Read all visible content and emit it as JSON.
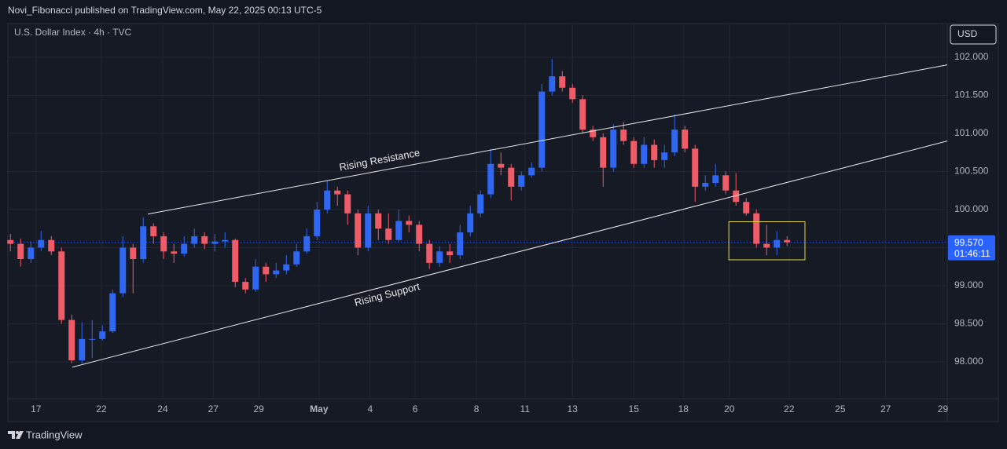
{
  "header": {
    "published": "Novi_Fibonacci published on TradingView.com, May 22, 2025 00:13 UTC-5"
  },
  "footer": {
    "brand": "TradingView"
  },
  "chart_data": {
    "type": "candlestick",
    "title": "U.S. Dollar Index · 4h · TVC",
    "currency": "USD",
    "up_color": "#2f66f2",
    "down_color": "#f05b68",
    "grid": true,
    "xlim": [
      0,
      183.85
    ],
    "ylim": [
      97.515,
      102.443
    ],
    "xticks": [
      {
        "value": 5.5,
        "label": "17"
      },
      {
        "value": 18.3,
        "label": "22"
      },
      {
        "value": 30.3,
        "label": "24"
      },
      {
        "value": 40.2,
        "label": "27"
      },
      {
        "value": 49.1,
        "label": "29"
      },
      {
        "value": 60.9,
        "label": "May"
      },
      {
        "value": 70.9,
        "label": "4"
      },
      {
        "value": 79.7,
        "label": "6"
      },
      {
        "value": 91.7,
        "label": "8"
      },
      {
        "value": 101.2,
        "label": "11"
      },
      {
        "value": 110.5,
        "label": "13"
      },
      {
        "value": 122.5,
        "label": "15"
      },
      {
        "value": 132.2,
        "label": "18"
      },
      {
        "value": 141.2,
        "label": "20"
      },
      {
        "value": 152.9,
        "label": "22"
      },
      {
        "value": 162.9,
        "label": "25"
      },
      {
        "value": 171.8,
        "label": "27"
      },
      {
        "value": 183,
        "label": "29"
      }
    ],
    "yticks": [
      {
        "value": 98,
        "label": "98.000"
      },
      {
        "value": 98.5,
        "label": "98.500"
      },
      {
        "value": 99,
        "label": "99.000"
      },
      {
        "value": 99.5,
        "label": "99.500"
      },
      {
        "value": 100,
        "label": "100.000"
      },
      {
        "value": 100.5,
        "label": "100.500"
      },
      {
        "value": 101,
        "label": "101.000"
      },
      {
        "value": 101.5,
        "label": "101.500"
      },
      {
        "value": 102,
        "label": "102.000"
      }
    ],
    "x": [
      0.5,
      2.5,
      4.5,
      6.5,
      8.5,
      10.5,
      12.5,
      14.5,
      16.5,
      18.5,
      20.5,
      22.5,
      24.5,
      26.5,
      28.5,
      30.5,
      32.5,
      34.5,
      36.5,
      38.5,
      40.5,
      42.5,
      44.5,
      46.5,
      48.5,
      50.5,
      52.5,
      54.5,
      56.5,
      58.5,
      60.5,
      62.5,
      64.5,
      66.5,
      68.5,
      70.5,
      72.5,
      74.5,
      76.5,
      78.5,
      80.5,
      82.5,
      84.5,
      86.5,
      88.5,
      90.5,
      92.5,
      94.5,
      96.5,
      98.5,
      100.5,
      102.5,
      104.5,
      106.5,
      108.5,
      110.5,
      112.5,
      114.5,
      116.5,
      118.5,
      120.5,
      122.5,
      124.5,
      126.5,
      128.5,
      130.5,
      132.5,
      134.5,
      136.5,
      138.5,
      140.5,
      142.5,
      144.5,
      146.5,
      148.5,
      150.5,
      152.5
    ],
    "open": [
      99.6,
      99.55,
      99.35,
      99.5,
      99.6,
      99.45,
      98.55,
      98.02,
      98.3,
      98.3,
      98.4,
      98.9,
      99.5,
      99.35,
      99.78,
      99.65,
      99.45,
      99.42,
      99.55,
      99.65,
      99.55,
      99.58,
      99.6,
      99.05,
      98.95,
      99.25,
      99.15,
      99.2,
      99.28,
      99.45,
      99.65,
      100.0,
      100.25,
      100.2,
      99.95,
      99.5,
      99.95,
      99.75,
      99.6,
      99.85,
      99.8,
      99.55,
      99.3,
      99.45,
      99.4,
      99.7,
      99.95,
      100.2,
      100.6,
      100.55,
      100.3,
      100.45,
      100.55,
      101.55,
      101.75,
      101.6,
      101.45,
      101.05,
      100.95,
      100.55,
      101.05,
      100.9,
      100.6,
      100.85,
      100.65,
      100.75,
      101.05,
      100.8,
      100.3,
      100.35,
      100.45,
      100.25,
      100.1,
      99.95,
      99.55,
      99.5,
      99.6
    ],
    "high": [
      99.68,
      99.62,
      99.58,
      99.72,
      99.65,
      99.5,
      98.62,
      98.52,
      98.55,
      98.48,
      98.95,
      99.65,
      99.55,
      99.9,
      99.82,
      99.7,
      99.55,
      99.65,
      99.75,
      99.7,
      99.68,
      99.7,
      99.62,
      99.1,
      99.35,
      99.3,
      99.3,
      99.4,
      99.55,
      99.75,
      100.1,
      100.38,
      100.3,
      100.25,
      100.0,
      100.05,
      100.0,
      99.95,
      100.0,
      99.92,
      99.85,
      99.6,
      99.52,
      99.55,
      99.8,
      100.05,
      100.25,
      100.8,
      100.75,
      100.6,
      100.5,
      100.62,
      101.65,
      101.98,
      101.82,
      101.65,
      101.5,
      101.1,
      101.0,
      101.12,
      101.15,
      100.95,
      100.95,
      100.92,
      100.85,
      101.25,
      101.1,
      100.85,
      100.45,
      100.6,
      100.5,
      100.48,
      100.15,
      100.0,
      99.8,
      99.72,
      99.65
    ],
    "low": [
      99.45,
      99.25,
      99.3,
      99.45,
      99.4,
      98.5,
      97.98,
      97.98,
      98.05,
      98.28,
      98.38,
      98.85,
      98.9,
      99.3,
      99.55,
      99.35,
      99.3,
      99.38,
      99.5,
      99.48,
      99.45,
      99.5,
      98.98,
      98.9,
      98.92,
      99.05,
      99.1,
      99.15,
      99.25,
      99.42,
      99.6,
      99.95,
      100.05,
      99.8,
      99.4,
      99.45,
      99.6,
      99.55,
      99.58,
      99.7,
      99.45,
      99.22,
      99.25,
      99.3,
      99.35,
      99.65,
      99.9,
      100.15,
      100.45,
      100.12,
      100.25,
      100.42,
      100.5,
      101.5,
      101.55,
      101.4,
      101.0,
      100.9,
      100.3,
      100.5,
      100.85,
      100.55,
      100.55,
      100.55,
      100.55,
      100.7,
      100.75,
      100.1,
      100.25,
      100.3,
      100.2,
      100.05,
      99.92,
      99.5,
      99.4,
      99.4,
      99.52
    ],
    "close": [
      99.55,
      99.35,
      99.5,
      99.6,
      99.45,
      98.55,
      98.02,
      98.3,
      98.3,
      98.4,
      98.9,
      99.5,
      99.35,
      99.78,
      99.65,
      99.45,
      99.42,
      99.55,
      99.65,
      99.55,
      99.58,
      99.6,
      99.05,
      98.95,
      99.25,
      99.15,
      99.2,
      99.28,
      99.45,
      99.65,
      100.0,
      100.25,
      100.2,
      99.95,
      99.5,
      99.95,
      99.75,
      99.6,
      99.85,
      99.8,
      99.55,
      99.3,
      99.45,
      99.4,
      99.7,
      99.95,
      100.2,
      100.6,
      100.55,
      100.3,
      100.45,
      100.55,
      101.55,
      101.75,
      101.6,
      101.45,
      101.05,
      100.95,
      100.55,
      101.05,
      100.9,
      100.6,
      100.85,
      100.65,
      100.75,
      101.05,
      100.8,
      100.3,
      100.35,
      100.45,
      100.25,
      100.1,
      99.95,
      99.55,
      99.5,
      99.6,
      99.57
    ],
    "last_price": {
      "value": 99.57,
      "label": "99.570",
      "countdown": "01:46:11",
      "color": "#2962ff"
    },
    "trendlines": [
      {
        "label": "Rising Resistance",
        "x": [
          27.4,
          183.85
        ],
        "y": [
          99.94,
          101.9
        ],
        "color": "#e8e8ea"
      },
      {
        "label": "Rising Support",
        "x": [
          12.6,
          183.85
        ],
        "y": [
          97.93,
          100.9
        ],
        "color": "#e8e8ea"
      }
    ],
    "highlight_box": {
      "x": [
        141.1,
        156.0
      ],
      "y": [
        99.34,
        99.84
      ],
      "color": "#e6d84a"
    }
  }
}
